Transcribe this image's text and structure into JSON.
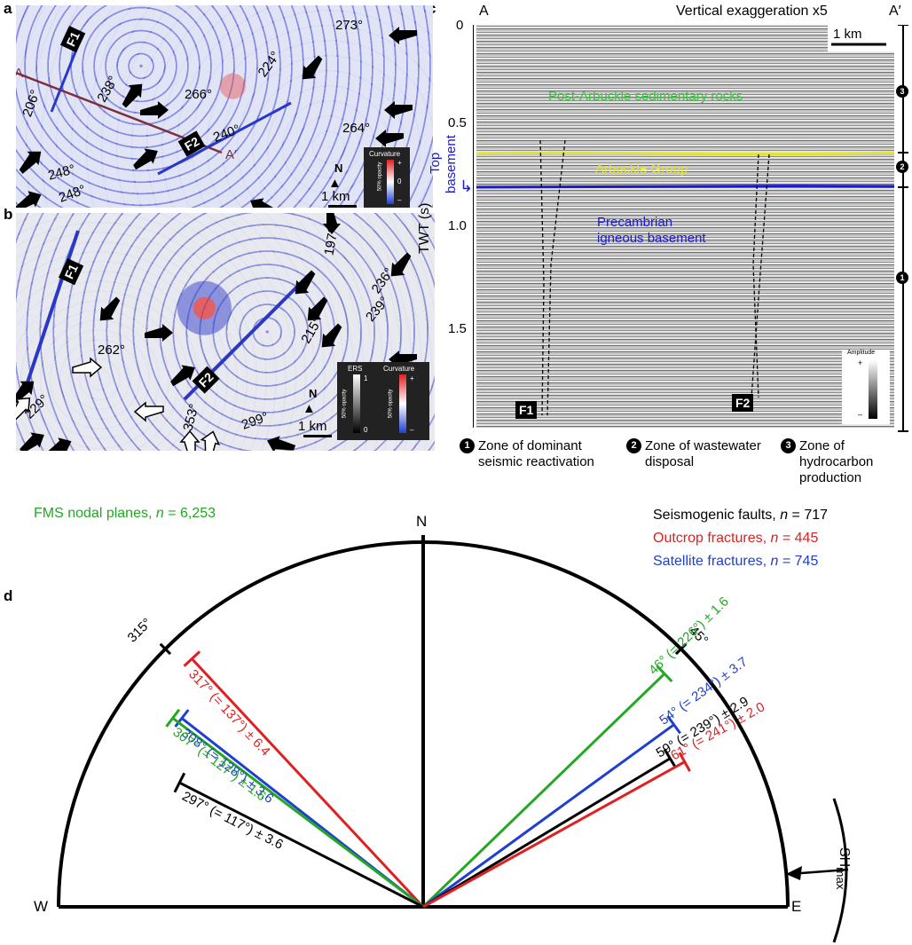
{
  "panels": {
    "a": "a",
    "b": "b",
    "c": "c",
    "d": "d"
  },
  "map_a": {
    "labels": [
      "273°",
      "206°",
      "238°",
      "266°",
      "224°",
      "264°",
      "240°",
      "248°",
      "248°"
    ],
    "faults": [
      "F1",
      "F2"
    ],
    "section_start": "A",
    "section_end": "A′",
    "north": "N",
    "scale": "1 km",
    "legend_title": "Curvature",
    "legend_sub": "50% opacity",
    "legend_plus": "+",
    "legend_zero": "0",
    "legend_minus": "–"
  },
  "map_b": {
    "labels": [
      "197°",
      "236°",
      "239°",
      "215°",
      "262°",
      "229°",
      "353°",
      "299°"
    ],
    "faults": [
      "F1",
      "F2"
    ],
    "north": "N",
    "scale": "1 km",
    "legend_ers": "ERS",
    "legend_curv": "Curvature",
    "legend_sub": "50% opacity",
    "legend_one": "1",
    "legend_zero": "0",
    "legend_plus": "+",
    "legend_minus": "–"
  },
  "seismic": {
    "start": "A",
    "end": "A′",
    "vert_exag": "Vertical exaggeration x5",
    "scale": "1 km",
    "ylabel": "TWT (s)",
    "yticks": [
      "0",
      "0.5",
      "1.0",
      "1.5"
    ],
    "unit_post": "Post-Arbuckle sedimentary rocks",
    "unit_arbuckle": "Arbuckle Group",
    "unit_basement_1": "Precambrian",
    "unit_basement_2": "igneous basement",
    "top_basement_1": "Top",
    "top_basement_2": "basement",
    "faults": [
      "F1",
      "F2"
    ],
    "amp_title": "Amplitude",
    "amp_plus": "+",
    "amp_minus": "–",
    "zone_markers": [
      "3",
      "2",
      "1"
    ],
    "colors": {
      "post": "#35c935",
      "arbuckle": "#e6e622",
      "basement": "#1a1ad0"
    }
  },
  "zones": [
    {
      "num": "1",
      "line1": "Zone of dominant",
      "line2": "seismic reactivation",
      "line3": ""
    },
    {
      "num": "2",
      "line1": "Zone of wastewater",
      "line2": "disposal",
      "line3": ""
    },
    {
      "num": "3",
      "line1": "Zone of",
      "line2": "hydrocarbon",
      "line3": "production"
    }
  ],
  "rose": {
    "n_label": "N",
    "w_label": "W",
    "e_label": "E",
    "tick_315": "315°",
    "tick_45": "45°",
    "shmax": "SH",
    "shmax_sub": "max",
    "legend": [
      {
        "text": "FMS nodal planes, ",
        "n": "n",
        "count": " = 6,253",
        "color": "#22a822"
      },
      {
        "text": "Seismogenic faults, ",
        "n": "n",
        "count": " = 717",
        "color": "#000000"
      },
      {
        "text": "Outcrop fractures, ",
        "n": "n",
        "count": " = 445",
        "color": "#e02020"
      },
      {
        "text": "Satellite fractures, ",
        "n": "n",
        "count": " = 745",
        "color": "#1f3fd0"
      }
    ],
    "strikes": [
      {
        "label": "317° (= 137°) ± 6.4",
        "az": 317,
        "color": "#e02020"
      },
      {
        "label": "308° (= 128°) ± 3.6",
        "az": 308,
        "color": "#1f3fd0"
      },
      {
        "label": "307° (= 127°) ± 1.6",
        "az": 307,
        "color": "#22a822"
      },
      {
        "label": "297° (= 117°) ± 3.6",
        "az": 297,
        "color": "#000000"
      },
      {
        "label": "46° (= 226°) ± 1.6",
        "az": 46,
        "color": "#22a822"
      },
      {
        "label": "54° (= 234°) ± 3.7",
        "az": 54,
        "color": "#1f3fd0"
      },
      {
        "label": "59° (= 239°) ± 2.9",
        "az": 59,
        "color": "#000000"
      },
      {
        "label": "61° (= 241°) ± 2.0",
        "az": 61,
        "color": "#e02020"
      }
    ]
  }
}
